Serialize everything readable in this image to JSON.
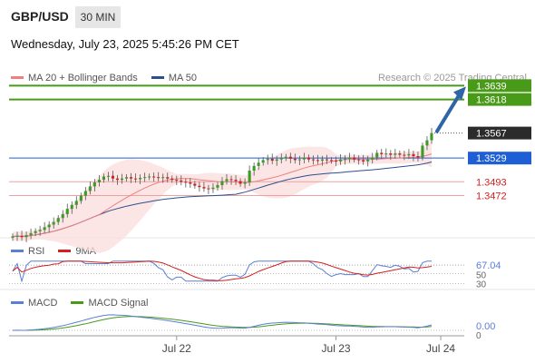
{
  "header": {
    "pair": "GBP/USD",
    "timeframe": "30 MIN",
    "datetime": "Wednesday, July 23, 2025 5:45:26 PM CET",
    "credit": "Research © 2025 Trading Central"
  },
  "legend_price": [
    {
      "label": "MA 20 + Bollinger Bands",
      "color": "#f08080"
    },
    {
      "label": "MA 50",
      "color": "#2b4f8f"
    }
  ],
  "legend_rsi": [
    {
      "label": "RSI",
      "color": "#5b7fd6"
    },
    {
      "label": "9MA",
      "color": "#d42020"
    }
  ],
  "legend_macd": [
    {
      "label": "MACD",
      "color": "#5b7fd6"
    },
    {
      "label": "MACD Signal",
      "color": "#4a9a1a"
    }
  ],
  "levels": [
    {
      "value": 1.3639,
      "label": "1.3639",
      "kind": "target",
      "color": "#4a9a1a"
    },
    {
      "value": 1.3618,
      "label": "1.3618",
      "kind": "target",
      "color": "#4a9a1a"
    },
    {
      "value": 1.3567,
      "label": "1.3567",
      "kind": "last",
      "color": "#333333"
    },
    {
      "value": 1.3529,
      "label": "1.3529",
      "kind": "pivot",
      "color": "#1f5fd6"
    },
    {
      "value": 1.3493,
      "label": "1.3493",
      "kind": "support",
      "color": "#d42020"
    },
    {
      "value": 1.3472,
      "label": "1.3472",
      "kind": "support",
      "color": "#d42020"
    }
  ],
  "rsi_panel": {
    "last_label": "67.04",
    "ref_labels": [
      "50",
      "30"
    ]
  },
  "macd_panel": {
    "last_label": "0.00",
    "ref_label": "0"
  },
  "x_axis": {
    "ticks": [
      {
        "label": "Jul 22",
        "index": 36
      },
      {
        "label": "Jul 24",
        "index": 94
      },
      {
        "label": "Jul 23",
        "index": 71
      }
    ]
  },
  "chart_data": {
    "type": "candlestick",
    "title": "GBP/USD 30 MIN",
    "y_range": [
      1.3408,
      1.3645
    ],
    "closes": [
      1.341,
      1.3411,
      1.3409,
      1.3412,
      1.3415,
      1.3418,
      1.342,
      1.3424,
      1.3428,
      1.3432,
      1.3438,
      1.3444,
      1.3452,
      1.3458,
      1.3464,
      1.3472,
      1.3479,
      1.3486,
      1.3492,
      1.3496,
      1.3501,
      1.3502,
      1.3498,
      1.3496,
      1.3498,
      1.35,
      1.3498,
      1.3497,
      1.3499,
      1.35,
      1.3501,
      1.35,
      1.3499,
      1.35,
      1.3498,
      1.3496,
      1.3495,
      1.3493,
      1.3492,
      1.349,
      1.3487,
      1.3485,
      1.3483,
      1.3482,
      1.3484,
      1.3488,
      1.3494,
      1.3497,
      1.3496,
      1.3494,
      1.349,
      1.3492,
      1.351,
      1.3517,
      1.3522,
      1.3526,
      1.3528,
      1.3525,
      1.3527,
      1.3529,
      1.3531,
      1.3528,
      1.3526,
      1.3527,
      1.353,
      1.3527,
      1.3526,
      1.3525,
      1.3527,
      1.3526,
      1.3525,
      1.3524,
      1.3527,
      1.3528,
      1.353,
      1.3527,
      1.3526,
      1.3524,
      1.3527,
      1.353,
      1.3537,
      1.3535,
      1.3536,
      1.3534,
      1.3536,
      1.3534,
      1.3533,
      1.3535,
      1.3532,
      1.353,
      1.3548,
      1.3556,
      1.3567
    ]
  }
}
